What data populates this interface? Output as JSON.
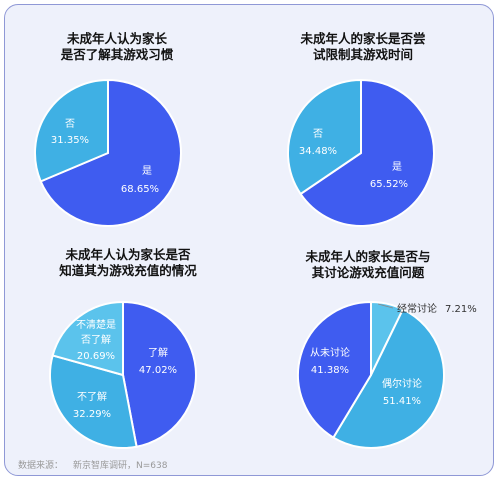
{
  "colors": {
    "primary": "#3f5cf0",
    "secondary": "#3fb0e4",
    "third": "#5bc3ec"
  },
  "chart_data": [
    {
      "type": "pie",
      "title": [
        "未成年人认为家长",
        "是否了解其游戏习惯"
      ],
      "slices": [
        {
          "label": "是",
          "value": 68.65,
          "value_text": "68.65%"
        },
        {
          "label": "否",
          "value": 31.35,
          "value_text": "31.35%"
        }
      ]
    },
    {
      "type": "pie",
      "title": [
        "未成年人的家长是否尝",
        "试限制其游戏时间"
      ],
      "slices": [
        {
          "label": "是",
          "value": 65.52,
          "value_text": "65.52%"
        },
        {
          "label": "否",
          "value": 34.48,
          "value_text": "34.48%"
        }
      ]
    },
    {
      "type": "pie",
      "title": [
        "未成年人认为家长是否",
        "知道其为游戏充值的情况"
      ],
      "slices": [
        {
          "label": "了解",
          "value": 47.02,
          "value_text": "47.02%"
        },
        {
          "label": "不了解",
          "value": 32.29,
          "value_text": "32.29%"
        },
        {
          "label": "不清楚是否了解",
          "label_lines": [
            "不清楚是",
            "否了解"
          ],
          "value": 20.69,
          "value_text": "20.69%"
        }
      ]
    },
    {
      "type": "pie",
      "title": [
        "未成年人的家长是否与",
        "其讨论游戏充值问题"
      ],
      "slices": [
        {
          "label": "经常讨论",
          "value": 7.21,
          "value_text": "7.21%"
        },
        {
          "label": "偶尔讨论",
          "value": 51.41,
          "value_text": "51.41%"
        },
        {
          "label": "从未讨论",
          "value": 41.38,
          "value_text": "41.38%"
        }
      ]
    }
  ],
  "footer": {
    "source_label": "数据来源：",
    "source_name": "新京智库调研，N=638"
  }
}
